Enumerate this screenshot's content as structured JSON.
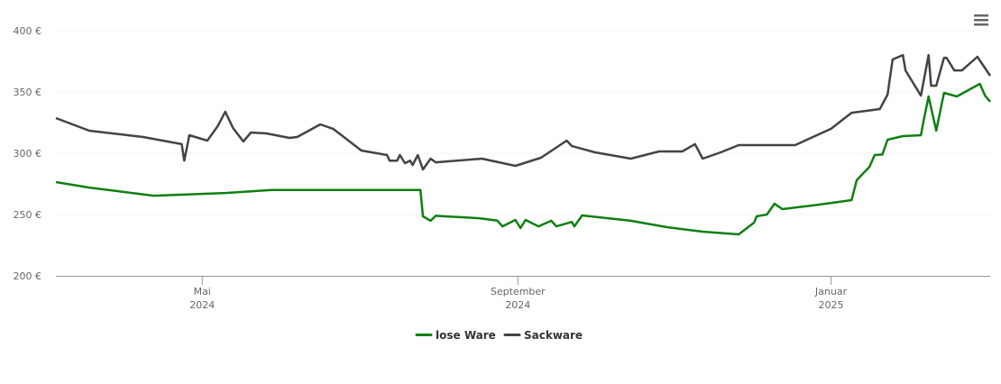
{
  "chart_data": {
    "type": "line",
    "xlim": [
      0,
      364
    ],
    "xticks": [
      {
        "value": 57,
        "label": [
          "Mai",
          "2024"
        ]
      },
      {
        "value": 180,
        "label": [
          "September",
          "2024"
        ]
      },
      {
        "value": 302,
        "label": [
          "Januar",
          "2025"
        ]
      }
    ],
    "ylim": [
      200,
      400
    ],
    "yticks": [
      {
        "value": 200,
        "label": "200 €"
      },
      {
        "value": 250,
        "label": "250 €"
      },
      {
        "value": 300,
        "label": "300 €"
      },
      {
        "value": 350,
        "label": "350 €"
      },
      {
        "value": 400,
        "label": "400 €"
      }
    ],
    "grid": true,
    "legend": "bottom",
    "series": [
      {
        "name": "lose Ware",
        "color": "#0f7f12",
        "x": [
          0,
          13,
          38,
          66,
          84,
          142,
          143,
          146,
          148,
          165,
          172,
          174,
          179,
          181,
          183,
          188,
          193,
          195,
          201,
          202,
          205,
          224,
          238,
          252,
          266,
          272,
          273,
          277,
          280,
          283,
          295,
          305,
          310,
          312,
          317,
          319,
          322,
          324,
          330,
          337,
          338,
          340,
          343,
          346,
          351,
          360,
          362,
          364
        ],
        "values": [
          276.5,
          272,
          265.4,
          267.6,
          270,
          270,
          248.5,
          244.9,
          249,
          247,
          245,
          240.4,
          245.6,
          239,
          245.6,
          240.4,
          244.9,
          240.4,
          244,
          240.4,
          249.3,
          244.9,
          239.7,
          236,
          233.8,
          243.4,
          248.5,
          250,
          258.8,
          254.4,
          257.4,
          260.3,
          261.8,
          278,
          289,
          298.5,
          299,
          311,
          314,
          314.7,
          325.7,
          346.3,
          318.4,
          349.3,
          346.3,
          356.6,
          347,
          342
        ]
      },
      {
        "name": "Sackware",
        "color": "#434348",
        "x": [
          0,
          13,
          34,
          49,
          50,
          52,
          59,
          63,
          66,
          69,
          73,
          76,
          82,
          91,
          94,
          103,
          108,
          119,
          129,
          130,
          133,
          134,
          136,
          138,
          139,
          141,
          143,
          146,
          148,
          166,
          179,
          189,
          199,
          201,
          210,
          224,
          235,
          244,
          249,
          252,
          259,
          266,
          288,
          302,
          310,
          321,
          324,
          326,
          330,
          331,
          337,
          340,
          341,
          343,
          346,
          347,
          350,
          353,
          359,
          364
        ],
        "values": [
          328.7,
          318.4,
          313.2,
          307.4,
          294,
          314.7,
          310.3,
          322,
          333.8,
          320.6,
          309.6,
          316.9,
          316.2,
          312.5,
          313.2,
          323.5,
          319.9,
          302.2,
          298.5,
          294,
          294,
          298.5,
          291.9,
          294,
          290.4,
          298.5,
          286.8,
          295.6,
          292.6,
          295.6,
          289.7,
          296.3,
          310.3,
          305.9,
          300.7,
          295.6,
          301.5,
          301.5,
          307.4,
          295.6,
          300.7,
          306.6,
          306.6,
          319.9,
          333,
          336,
          347.8,
          376.5,
          380.1,
          367.6,
          347,
          380.1,
          355.1,
          355.1,
          377.9,
          377.9,
          367.6,
          367.6,
          378.7,
          363.2
        ]
      }
    ]
  }
}
